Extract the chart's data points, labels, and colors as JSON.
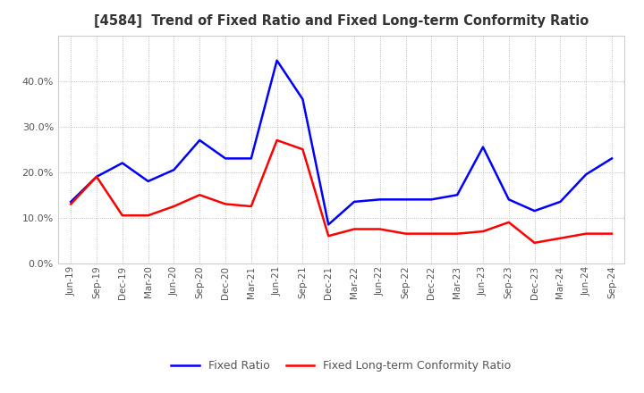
{
  "title": "[4584]  Trend of Fixed Ratio and Fixed Long-term Conformity Ratio",
  "x_labels": [
    "Jun-19",
    "Sep-19",
    "Dec-19",
    "Mar-20",
    "Jun-20",
    "Sep-20",
    "Dec-20",
    "Mar-21",
    "Jun-21",
    "Sep-21",
    "Dec-21",
    "Mar-22",
    "Jun-22",
    "Sep-22",
    "Dec-22",
    "Mar-23",
    "Jun-23",
    "Sep-23",
    "Dec-23",
    "Mar-24",
    "Jun-24",
    "Sep-24"
  ],
  "fixed_ratio": [
    13.5,
    19.0,
    22.0,
    18.0,
    20.5,
    27.0,
    23.0,
    23.0,
    44.5,
    36.0,
    8.5,
    13.5,
    14.0,
    14.0,
    14.0,
    15.0,
    25.5,
    14.0,
    11.5,
    13.5,
    19.5,
    23.0
  ],
  "fixed_lt_ratio": [
    13.0,
    19.0,
    10.5,
    10.5,
    12.5,
    15.0,
    13.0,
    12.5,
    27.0,
    25.0,
    6.0,
    7.5,
    7.5,
    6.5,
    6.5,
    6.5,
    7.0,
    9.0,
    4.5,
    5.5,
    6.5,
    6.5
  ],
  "fixed_ratio_color": "#0000FF",
  "fixed_lt_ratio_color": "#FF0000",
  "ylim": [
    0,
    50
  ],
  "yticks": [
    0.0,
    10.0,
    20.0,
    30.0,
    40.0
  ],
  "background_color": "#FFFFFF",
  "grid_color": "#AAAAAA",
  "title_color": "#333333",
  "tick_color": "#555555"
}
